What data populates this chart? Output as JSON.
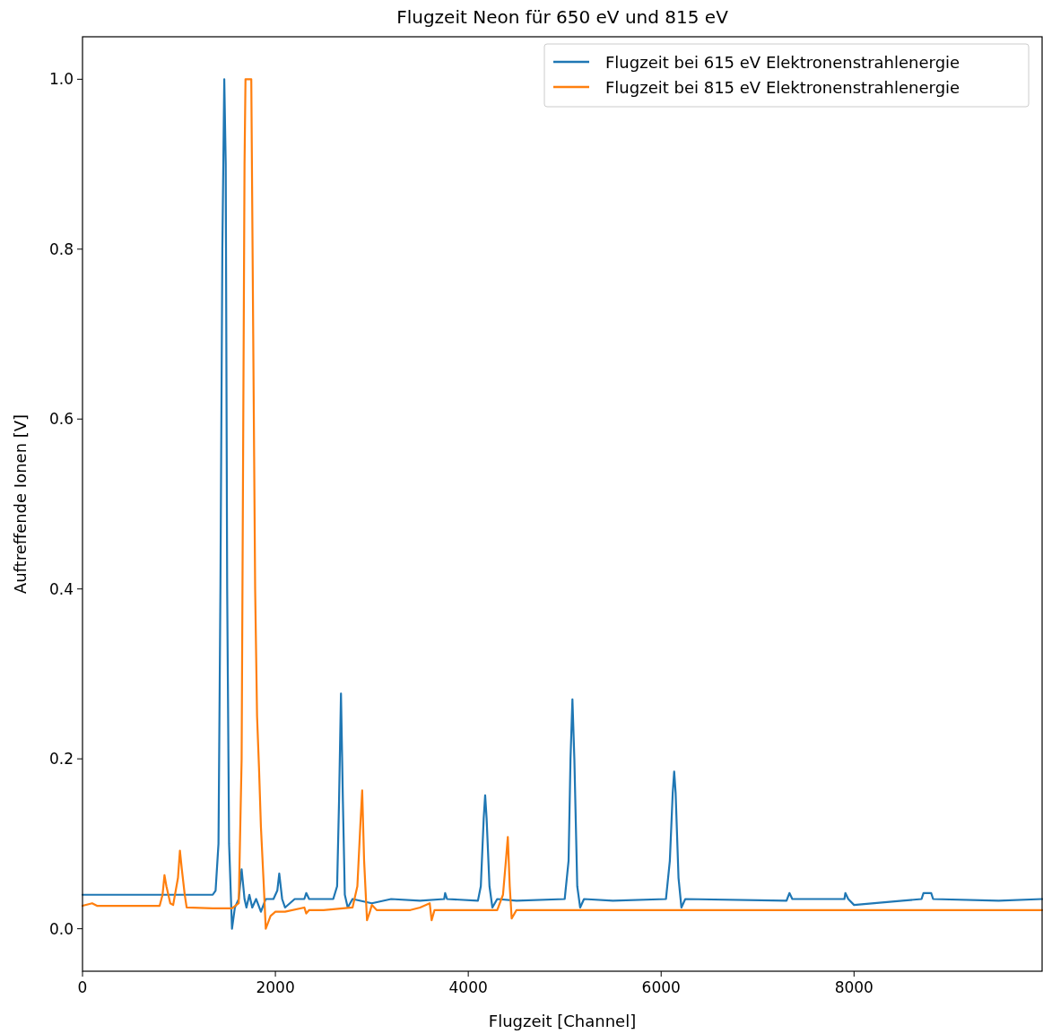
{
  "chart_data": {
    "type": "line",
    "title": "Flugzeit Neon für 650 eV und 815 eV",
    "xlabel": "Flugzeit [Channel]",
    "ylabel": "Auftreffende Ionen [V]",
    "xlim": [
      0,
      9950
    ],
    "ylim": [
      -0.05,
      1.05
    ],
    "xticks": [
      0,
      2000,
      4000,
      6000,
      8000
    ],
    "yticks": [
      {
        "value": 0,
        "label": "0.0"
      },
      {
        "value": 0.2,
        "label": "0.2"
      },
      {
        "value": 0.4,
        "label": "0.4"
      },
      {
        "value": 0.6,
        "label": "0.6"
      },
      {
        "value": 0.8,
        "label": "0.8"
      },
      {
        "value": 1,
        "label": "1.0"
      }
    ],
    "legend": "top right",
    "grid": false,
    "marker": "none",
    "line_style": "solid",
    "series": [
      {
        "name": "Flugzeit bei 615 eV Elektronenstrahlenergie",
        "color": "#1f77b4",
        "x": [
          0,
          1350,
          1380,
          1410,
          1430,
          1450,
          1470,
          1485,
          1500,
          1520,
          1550,
          1580,
          1620,
          1650,
          1680,
          1700,
          1730,
          1760,
          1800,
          1850,
          1900,
          1980,
          2020,
          2040,
          2070,
          2100,
          2200,
          2300,
          2320,
          2350,
          2500,
          2600,
          2640,
          2660,
          2680,
          2700,
          2720,
          2750,
          2800,
          3000,
          3200,
          3500,
          3750,
          3760,
          3780,
          4100,
          4130,
          4160,
          4175,
          4190,
          4220,
          4250,
          4300,
          4500,
          5000,
          5040,
          5060,
          5080,
          5100,
          5130,
          5160,
          5200,
          5500,
          6050,
          6090,
          6120,
          6135,
          6150,
          6180,
          6210,
          6250,
          7300,
          7330,
          7360,
          7900,
          7910,
          7940,
          8000,
          8500,
          8700,
          8720,
          8800,
          8820,
          9500,
          9950
        ],
        "values": [
          0.04,
          0.04,
          0.045,
          0.1,
          0.4,
          0.8,
          1.0,
          0.9,
          0.4,
          0.1,
          0.0,
          0.025,
          0.035,
          0.07,
          0.035,
          0.025,
          0.04,
          0.025,
          0.035,
          0.02,
          0.035,
          0.035,
          0.045,
          0.065,
          0.035,
          0.025,
          0.035,
          0.035,
          0.042,
          0.035,
          0.035,
          0.035,
          0.05,
          0.15,
          0.277,
          0.15,
          0.04,
          0.025,
          0.035,
          0.03,
          0.035,
          0.033,
          0.035,
          0.042,
          0.035,
          0.033,
          0.05,
          0.13,
          0.157,
          0.13,
          0.05,
          0.025,
          0.035,
          0.033,
          0.035,
          0.08,
          0.2,
          0.27,
          0.2,
          0.05,
          0.025,
          0.035,
          0.033,
          0.035,
          0.08,
          0.16,
          0.185,
          0.16,
          0.06,
          0.025,
          0.035,
          0.033,
          0.042,
          0.035,
          0.035,
          0.042,
          0.035,
          0.028,
          0.033,
          0.035,
          0.042,
          0.042,
          0.035,
          0.033,
          0.035
        ]
      },
      {
        "name": "Flugzeit bei 815 eV Elektronenstrahlenergie",
        "color": "#ff7f0e",
        "x": [
          0,
          100,
          150,
          800,
          830,
          850,
          870,
          910,
          940,
          990,
          1010,
          1030,
          1060,
          1080,
          1350,
          1550,
          1620,
          1650,
          1680,
          1690,
          1750,
          1770,
          1790,
          1810,
          1830,
          1850,
          1880,
          1900,
          1950,
          2000,
          2100,
          2300,
          2320,
          2350,
          2500,
          2800,
          2850,
          2880,
          2900,
          2920,
          2950,
          2980,
          3000,
          3050,
          3400,
          3500,
          3600,
          3620,
          3650,
          4300,
          4360,
          4390,
          4410,
          4430,
          4450,
          4500,
          9950
        ],
        "values": [
          0.027,
          0.03,
          0.027,
          0.027,
          0.04,
          0.063,
          0.05,
          0.03,
          0.028,
          0.06,
          0.092,
          0.07,
          0.04,
          0.025,
          0.024,
          0.024,
          0.03,
          0.2,
          0.9,
          1.0,
          1.0,
          0.7,
          0.4,
          0.25,
          0.19,
          0.12,
          0.05,
          0.0,
          0.015,
          0.02,
          0.02,
          0.025,
          0.018,
          0.022,
          0.022,
          0.025,
          0.05,
          0.12,
          0.163,
          0.08,
          0.01,
          0.02,
          0.028,
          0.022,
          0.022,
          0.025,
          0.03,
          0.01,
          0.022,
          0.022,
          0.04,
          0.08,
          0.108,
          0.05,
          0.012,
          0.022,
          0.022
        ]
      }
    ]
  }
}
